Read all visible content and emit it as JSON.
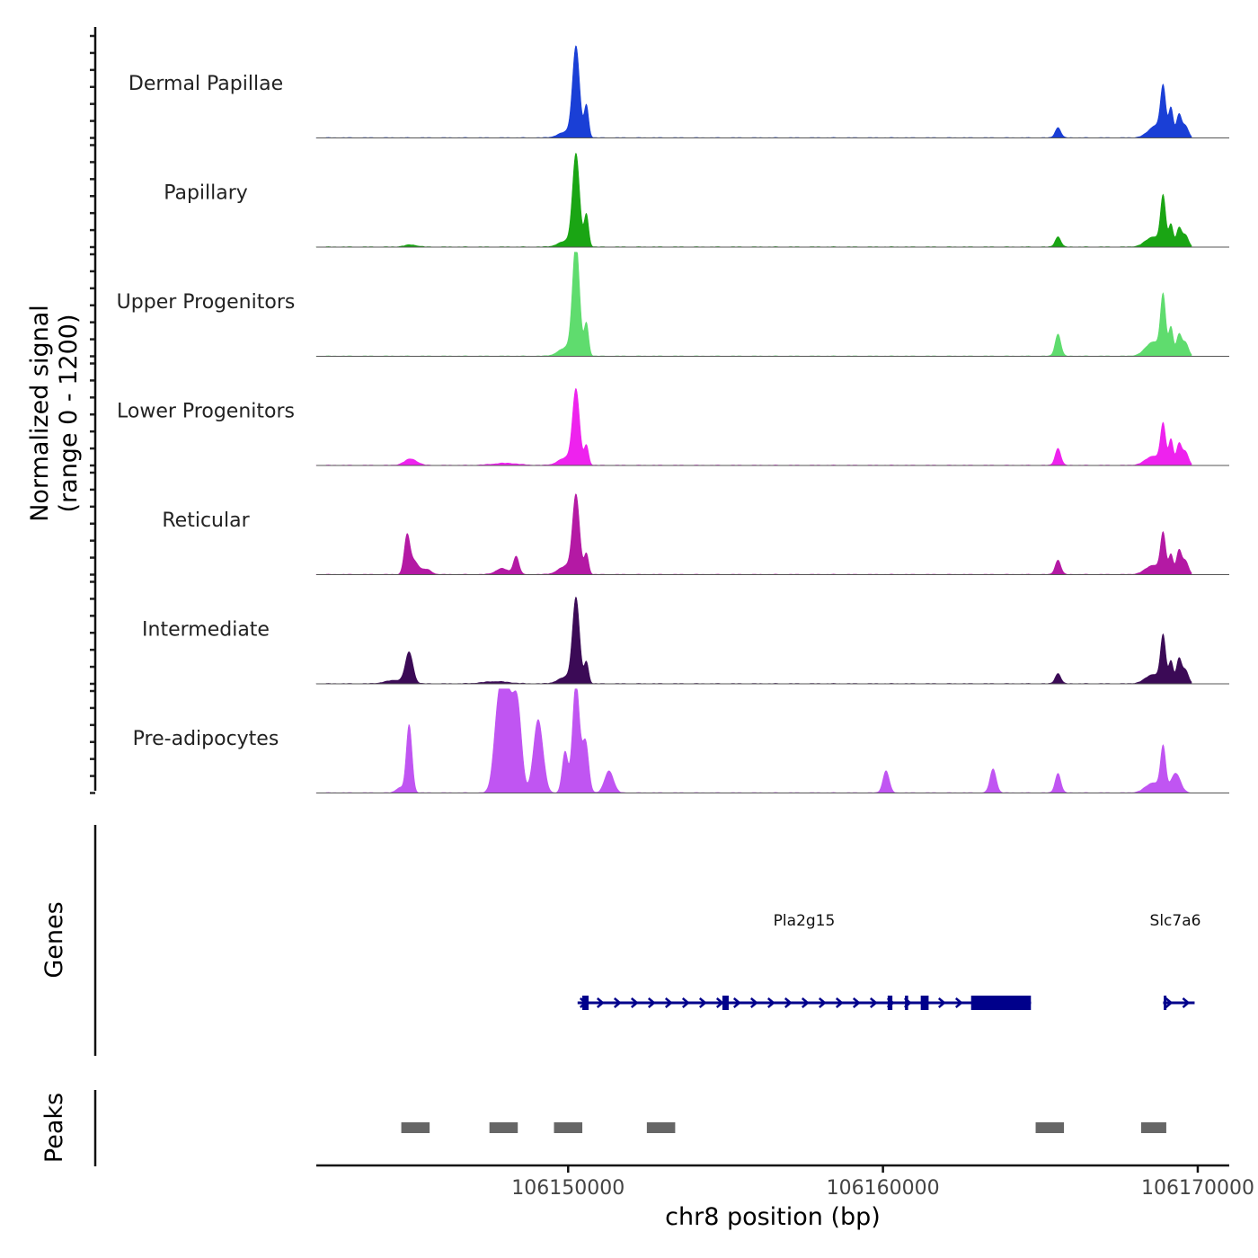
{
  "chart_data": {
    "type": "area",
    "title": "",
    "ylabel_line1": "Normalized signal",
    "ylabel_line2": "(range 0 - 1200)",
    "ylim": [
      0,
      1200
    ],
    "xlabel": "chr8 position (bp)",
    "xlim": [
      106142000,
      106171000
    ],
    "x_ticks": [
      106150000,
      106160000,
      106170000
    ],
    "x_tick_labels": [
      "106150000",
      "106160000",
      "106170000"
    ],
    "tracks": [
      {
        "name": "Dermal Papillae",
        "color": "#1a3fd6",
        "peaks": [
          {
            "center": 106150250,
            "height": 1050,
            "width": 110
          },
          {
            "center": 106150580,
            "height": 380,
            "width": 70
          },
          {
            "center": 106149950,
            "height": 70,
            "width": 250
          },
          {
            "center": 106165560,
            "height": 120,
            "width": 90
          },
          {
            "center": 106168900,
            "height": 520,
            "width": 80
          },
          {
            "center": 106169150,
            "height": 330,
            "width": 70
          },
          {
            "center": 106169400,
            "height": 260,
            "width": 80
          },
          {
            "center": 106168700,
            "height": 150,
            "width": 250
          },
          {
            "center": 106169600,
            "height": 140,
            "width": 100
          }
        ]
      },
      {
        "name": "Papillary",
        "color": "#1aa514",
        "peaks": [
          {
            "center": 106145000,
            "height": 25,
            "width": 200
          },
          {
            "center": 106150250,
            "height": 1070,
            "width": 110
          },
          {
            "center": 106150580,
            "height": 380,
            "width": 70
          },
          {
            "center": 106149950,
            "height": 70,
            "width": 250
          },
          {
            "center": 106165560,
            "height": 120,
            "width": 90
          },
          {
            "center": 106168900,
            "height": 560,
            "width": 80
          },
          {
            "center": 106169150,
            "height": 260,
            "width": 70
          },
          {
            "center": 106169400,
            "height": 210,
            "width": 80
          },
          {
            "center": 106168600,
            "height": 120,
            "width": 250
          },
          {
            "center": 106169600,
            "height": 140,
            "width": 100
          }
        ]
      },
      {
        "name": "Upper Progenitors",
        "color": "#5fdc6e",
        "peaks": [
          {
            "center": 106150250,
            "height": 1300,
            "width": 110
          },
          {
            "center": 106150580,
            "height": 380,
            "width": 70
          },
          {
            "center": 106149950,
            "height": 100,
            "width": 250
          },
          {
            "center": 106165560,
            "height": 260,
            "width": 90
          },
          {
            "center": 106168900,
            "height": 660,
            "width": 80
          },
          {
            "center": 106169150,
            "height": 330,
            "width": 70
          },
          {
            "center": 106169400,
            "height": 240,
            "width": 80
          },
          {
            "center": 106168600,
            "height": 170,
            "width": 250
          },
          {
            "center": 106169600,
            "height": 160,
            "width": 100
          }
        ]
      },
      {
        "name": "Lower Progenitors",
        "color": "#ee22ee",
        "peaks": [
          {
            "center": 106145000,
            "height": 75,
            "width": 200
          },
          {
            "center": 106148000,
            "height": 25,
            "width": 400
          },
          {
            "center": 106150250,
            "height": 860,
            "width": 110
          },
          {
            "center": 106150580,
            "height": 230,
            "width": 70
          },
          {
            "center": 106149950,
            "height": 90,
            "width": 250
          },
          {
            "center": 106165560,
            "height": 200,
            "width": 90
          },
          {
            "center": 106168900,
            "height": 450,
            "width": 80
          },
          {
            "center": 106169150,
            "height": 300,
            "width": 70
          },
          {
            "center": 106169400,
            "height": 240,
            "width": 80
          },
          {
            "center": 106168600,
            "height": 110,
            "width": 250
          },
          {
            "center": 106169600,
            "height": 160,
            "width": 100
          }
        ]
      },
      {
        "name": "Reticular",
        "color": "#b419a4",
        "peaks": [
          {
            "center": 106144880,
            "height": 430,
            "width": 90
          },
          {
            "center": 106145100,
            "height": 160,
            "width": 140
          },
          {
            "center": 106145500,
            "height": 60,
            "width": 150
          },
          {
            "center": 106148350,
            "height": 210,
            "width": 90
          },
          {
            "center": 106147900,
            "height": 70,
            "width": 200
          },
          {
            "center": 106150250,
            "height": 900,
            "width": 110
          },
          {
            "center": 106150580,
            "height": 240,
            "width": 70
          },
          {
            "center": 106149950,
            "height": 100,
            "width": 250
          },
          {
            "center": 106165560,
            "height": 170,
            "width": 90
          },
          {
            "center": 106168900,
            "height": 450,
            "width": 80
          },
          {
            "center": 106169150,
            "height": 230,
            "width": 70
          },
          {
            "center": 106169400,
            "height": 270,
            "width": 80
          },
          {
            "center": 106168600,
            "height": 110,
            "width": 250
          },
          {
            "center": 106169600,
            "height": 160,
            "width": 100
          }
        ]
      },
      {
        "name": "Intermediate",
        "color": "#3b0a56",
        "peaks": [
          {
            "center": 106144950,
            "height": 360,
            "width": 120
          },
          {
            "center": 106144500,
            "height": 40,
            "width": 300
          },
          {
            "center": 106147700,
            "height": 25,
            "width": 400
          },
          {
            "center": 106150250,
            "height": 980,
            "width": 110
          },
          {
            "center": 106150580,
            "height": 250,
            "width": 70
          },
          {
            "center": 106149950,
            "height": 80,
            "width": 250
          },
          {
            "center": 106165560,
            "height": 120,
            "width": 90
          },
          {
            "center": 106168900,
            "height": 530,
            "width": 80
          },
          {
            "center": 106169150,
            "height": 260,
            "width": 70
          },
          {
            "center": 106169400,
            "height": 280,
            "width": 80
          },
          {
            "center": 106168600,
            "height": 110,
            "width": 250
          },
          {
            "center": 106169600,
            "height": 160,
            "width": 100
          }
        ]
      },
      {
        "name": "Pre-adipocytes",
        "color": "#c055f2",
        "peaks": [
          {
            "center": 106144950,
            "height": 800,
            "width": 90
          },
          {
            "center": 106144650,
            "height": 60,
            "width": 120
          },
          {
            "center": 106147800,
            "height": 1000,
            "width": 150
          },
          {
            "center": 106148100,
            "height": 1050,
            "width": 170
          },
          {
            "center": 106148400,
            "height": 900,
            "width": 130
          },
          {
            "center": 106149050,
            "height": 860,
            "width": 150
          },
          {
            "center": 106149900,
            "height": 480,
            "width": 90
          },
          {
            "center": 106150250,
            "height": 1300,
            "width": 110
          },
          {
            "center": 106150550,
            "height": 600,
            "width": 100
          },
          {
            "center": 106151300,
            "height": 260,
            "width": 140
          },
          {
            "center": 106160100,
            "height": 260,
            "width": 100
          },
          {
            "center": 106163500,
            "height": 280,
            "width": 100
          },
          {
            "center": 106165560,
            "height": 230,
            "width": 90
          },
          {
            "center": 106168900,
            "height": 500,
            "width": 80
          },
          {
            "center": 106168600,
            "height": 120,
            "width": 250
          },
          {
            "center": 106169300,
            "height": 230,
            "width": 150
          }
        ]
      }
    ],
    "genes_label": "Genes",
    "genes": [
      {
        "name": "Pla2g15",
        "start": 106150300,
        "end": 106164700,
        "strand": "+",
        "color": "#00008b",
        "exons": [
          {
            "start": 106150450,
            "end": 106150650
          },
          {
            "start": 106154900,
            "end": 106155100
          },
          {
            "start": 106160150,
            "end": 106160300
          },
          {
            "start": 106160700,
            "end": 106160800
          },
          {
            "start": 106161200,
            "end": 106161450
          },
          {
            "start": 106162800,
            "end": 106164700
          }
        ]
      },
      {
        "name": "Slc7a6",
        "start": 106168900,
        "end": 106169900,
        "strand": "+",
        "color": "#00008b",
        "exons": [
          {
            "start": 106168920,
            "end": 106168990
          }
        ]
      }
    ],
    "peaks_label": "Peaks",
    "peak_regions": [
      {
        "start": 106144700,
        "end": 106145600
      },
      {
        "start": 106147500,
        "end": 106148400
      },
      {
        "start": 106149550,
        "end": 106150450
      },
      {
        "start": 106152500,
        "end": 106153400
      },
      {
        "start": 106164850,
        "end": 106165750
      },
      {
        "start": 106168200,
        "end": 106169000
      }
    ]
  }
}
